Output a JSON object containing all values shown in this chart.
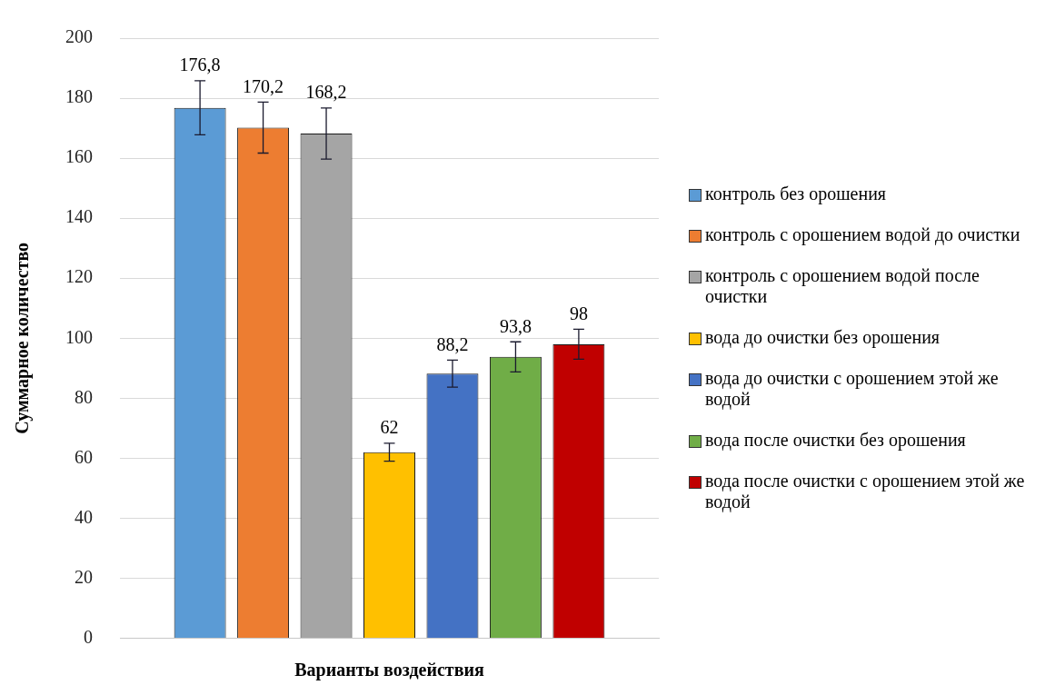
{
  "chart_data": {
    "type": "bar",
    "xlabel": "Варианты воздействия",
    "ylabel": "Суммарное количество",
    "categories": [
      null
    ],
    "series": [
      {
        "name": "контроль без орошения",
        "color": "#5b9bd5",
        "values": [
          176.8
        ],
        "errors": [
          9
        ],
        "value_labels": [
          "176,8"
        ]
      },
      {
        "name": "контроль с орошением водой до очистки",
        "color": "#ed7d31",
        "values": [
          170.2
        ],
        "errors": [
          8.5
        ],
        "value_labels": [
          "170,2"
        ]
      },
      {
        "name": "контроль с орошением водой после очистки",
        "color": "#a5a5a5",
        "values": [
          168.2
        ],
        "errors": [
          8.5
        ],
        "value_labels": [
          "168,2"
        ]
      },
      {
        "name": "вода до очистки без орошения",
        "color": "#ffc000",
        "values": [
          62
        ],
        "errors": [
          3
        ],
        "value_labels": [
          "62"
        ]
      },
      {
        "name": "вода до очистки с орошением этой же водой",
        "color": "#4472c4",
        "values": [
          88.2
        ],
        "errors": [
          4.5
        ],
        "value_labels": [
          "88,2"
        ]
      },
      {
        "name": "вода после очистки без орошения",
        "color": "#70ad47",
        "values": [
          93.8
        ],
        "errors": [
          5
        ],
        "value_labels": [
          "93,8"
        ]
      },
      {
        "name": "вода после очистки с орошением этой же водой",
        "color": "#c00000",
        "values": [
          98
        ],
        "errors": [
          5
        ],
        "value_labels": [
          "98"
        ]
      }
    ],
    "ylim": [
      0,
      200
    ],
    "yticks": [
      0,
      20,
      40,
      60,
      80,
      100,
      120,
      140,
      160,
      180,
      200
    ],
    "grid": "y",
    "legend": "right"
  }
}
